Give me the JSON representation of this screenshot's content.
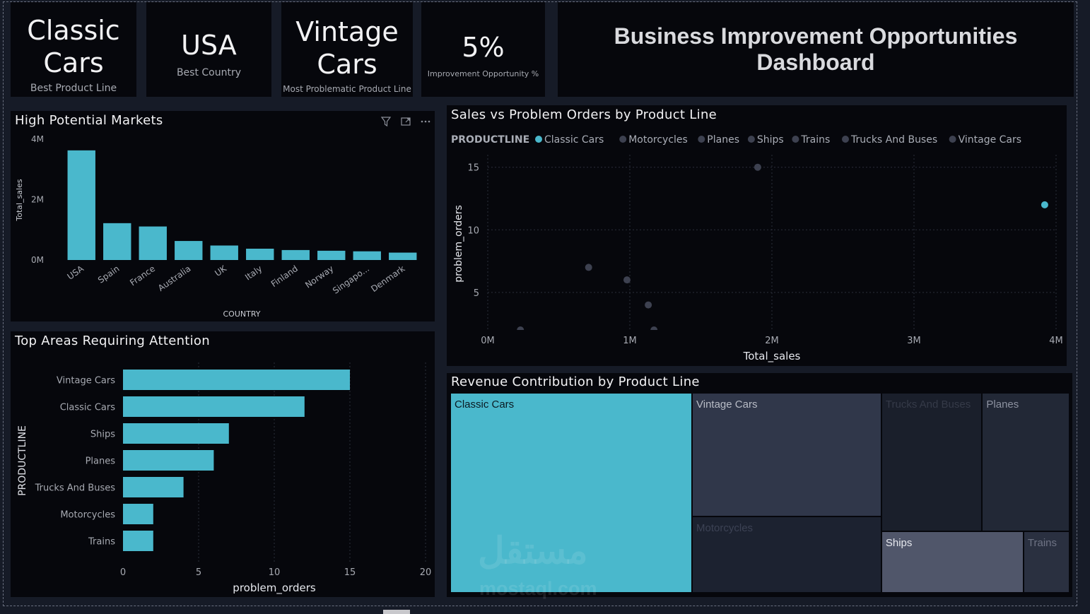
{
  "kpis": [
    {
      "value_line1": "Classic",
      "value_line2": "Cars",
      "caption": "Best Product Line"
    },
    {
      "value": "USA",
      "caption": "Best Country"
    },
    {
      "value_line1": "Vintage",
      "value_line2": "Cars",
      "caption": "Most Problematic Product Line"
    },
    {
      "value": "5%",
      "caption": "Improvement Opportunity %"
    }
  ],
  "dashboard_title": {
    "line1": "Business Improvement Opportunities",
    "line2": "Dashboard"
  },
  "visual_header_icons": [
    "filter-icon",
    "focus-mode-icon",
    "more-options-icon"
  ],
  "colors": {
    "accent": "#4ab8cc",
    "muted_point": "#3d4150",
    "panel": "#06070c",
    "background": "#161b27"
  },
  "chart_data": [
    {
      "id": "high_potential_markets",
      "type": "bar",
      "title": "High Potential Markets",
      "xlabel": "COUNTRY",
      "ylabel": "Total_sales",
      "categories": [
        "USA",
        "Spain",
        "France",
        "Australia",
        "UK",
        "Italy",
        "Finland",
        "Norway",
        "Singapo...",
        "Denmark"
      ],
      "values": [
        3630000,
        1220000,
        1110000,
        630000,
        480000,
        375000,
        330000,
        307000,
        288000,
        245000
      ],
      "yticks": [
        {
          "v": 0,
          "label": "0M"
        },
        {
          "v": 2000000,
          "label": "2M"
        },
        {
          "v": 4000000,
          "label": "4M"
        }
      ],
      "ylim": [
        0,
        4000000
      ],
      "grid": false
    },
    {
      "id": "top_areas_requiring_attention",
      "type": "bar",
      "orientation": "horizontal",
      "title": "Top Areas Requiring Attention",
      "xlabel": "problem_orders",
      "ylabel": "PRODUCTLINE",
      "categories": [
        "Vintage Cars",
        "Classic Cars",
        "Ships",
        "Planes",
        "Trucks And Buses",
        "Motorcycles",
        "Trains"
      ],
      "values": [
        15,
        12,
        7,
        6,
        4,
        2,
        2
      ],
      "xticks": [
        0,
        5,
        10,
        15,
        20
      ],
      "xlim": [
        0,
        20
      ],
      "grid": true
    },
    {
      "id": "sales_vs_problem_orders",
      "type": "scatter",
      "title": "Sales vs Problem Orders by Product Line",
      "xlabel": "Total_sales",
      "ylabel": "problem_orders",
      "legend_title": "PRODUCTLINE",
      "legend_position": "top-left",
      "series": [
        {
          "name": "Classic Cars",
          "highlighted": true,
          "points": [
            {
              "x": 3920000,
              "y": 12
            }
          ]
        },
        {
          "name": "Motorcycles",
          "highlighted": false,
          "points": [
            {
              "x": 1170000,
              "y": 2
            }
          ]
        },
        {
          "name": "Planes",
          "highlighted": false,
          "points": [
            {
              "x": 980000,
              "y": 6
            }
          ]
        },
        {
          "name": "Ships",
          "highlighted": false,
          "points": [
            {
              "x": 710000,
              "y": 7
            }
          ]
        },
        {
          "name": "Trains",
          "highlighted": false,
          "points": [
            {
              "x": 230000,
              "y": 2
            }
          ]
        },
        {
          "name": "Trucks And Buses",
          "highlighted": false,
          "points": [
            {
              "x": 1130000,
              "y": 4
            }
          ]
        },
        {
          "name": "Vintage Cars",
          "highlighted": false,
          "points": [
            {
              "x": 1900000,
              "y": 15
            }
          ]
        }
      ],
      "xticks": [
        {
          "v": 0,
          "label": "0M"
        },
        {
          "v": 1000000,
          "label": "1M"
        },
        {
          "v": 2000000,
          "label": "2M"
        },
        {
          "v": 3000000,
          "label": "3M"
        },
        {
          "v": 4000000,
          "label": "4M"
        }
      ],
      "yticks": [
        5,
        10,
        15
      ],
      "xlim": [
        0,
        4000000
      ],
      "ylim": [
        2,
        16
      ],
      "grid": true
    },
    {
      "id": "revenue_contribution",
      "type": "treemap",
      "title": "Revenue Contribution by Product Line",
      "items": [
        {
          "name": "Classic Cars",
          "value": 3920000,
          "color": "#4ab8cc",
          "label_color": "#0a1a22"
        },
        {
          "name": "Vintage Cars",
          "value": 1900000,
          "color": "#30374a",
          "label_color": "#b8bcc6"
        },
        {
          "name": "Motorcycles",
          "value": 1170000,
          "color": "#1c2230",
          "label_color": "#3c4254"
        },
        {
          "name": "Trucks And Buses",
          "value": 1130000,
          "color": "#1a1f2b",
          "label_color": "#353a48"
        },
        {
          "name": "Planes",
          "value": 980000,
          "color": "#222836",
          "label_color": "#8d92a0"
        },
        {
          "name": "Ships",
          "value": 710000,
          "color": "#50566a",
          "label_color": "#e6e8ee"
        },
        {
          "name": "Trains",
          "value": 230000,
          "color": "#2a3040",
          "label_color": "#6e7384"
        }
      ]
    }
  ],
  "watermark": {
    "arabic": "مستقل",
    "latin": "mostaql.com"
  }
}
